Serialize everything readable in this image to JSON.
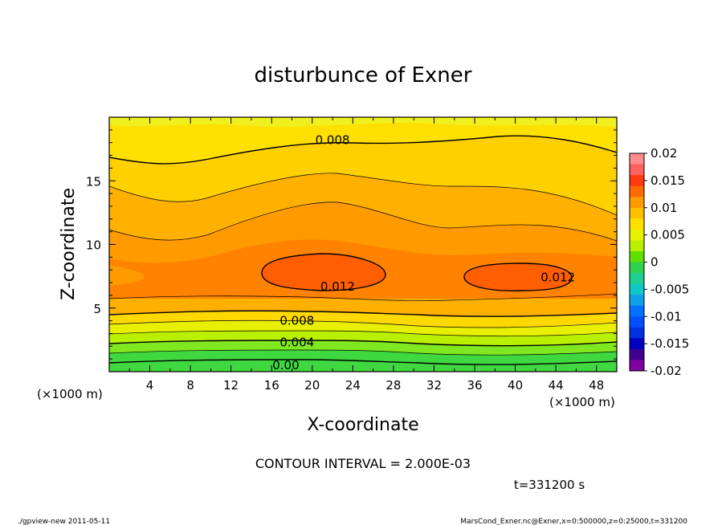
{
  "chart_data": {
    "type": "contour",
    "title": "disturbunce of Exner",
    "xlabel": "X-coordinate",
    "ylabel": "Z-coordinate",
    "x_unit_left": "(×1000 m)",
    "x_unit_right": "(×1000 m)",
    "xlim": [
      0,
      50
    ],
    "ylim": [
      0,
      20
    ],
    "x_ticks": [
      "4",
      "8",
      "12",
      "16",
      "20",
      "24",
      "28",
      "32",
      "36",
      "40",
      "44",
      "48"
    ],
    "y_ticks": [
      "5",
      "10",
      "15"
    ],
    "colorbar": {
      "labels": [
        "0.02",
        "0.015",
        "0.01",
        "0.005",
        "0",
        "-0.005",
        "-0.01",
        "-0.015",
        "-0.02"
      ],
      "colors": [
        "#ff8c8c",
        "#ff6060",
        "#ff3a10",
        "#ff6a00",
        "#ff9a00",
        "#ffc000",
        "#ffe000",
        "#e8f000",
        "#b8f000",
        "#60e000",
        "#30d050",
        "#20d090",
        "#10c8c8",
        "#10a0e8",
        "#0070ff",
        "#0050ff",
        "#0030e0",
        "#0000c0",
        "#400090",
        "#8000a0"
      ]
    },
    "contour_labels": [
      {
        "text": "0.008",
        "x": 22.0,
        "z": 18.2
      },
      {
        "text": "0.012",
        "x": 22.5,
        "z": 6.7
      },
      {
        "text": "0.012",
        "x": 44.2,
        "z": 7.4
      },
      {
        "text": "0.008",
        "x": 18.5,
        "z": 4.0
      },
      {
        "text": "0.004",
        "x": 18.5,
        "z": 2.3
      },
      {
        "text": "0.00",
        "x": 17.4,
        "z": 0.5
      }
    ],
    "contour_interval_text": "CONTOUR INTERVAL = 2.000E-03",
    "time_text": "t=331200 s"
  },
  "footer": {
    "left": "./gpview-new   2011-05-11",
    "right": "MarsCond_Exner.nc@Exner,x=0:500000,z=0:25000,t=331200"
  },
  "colors": {
    "yellow": "#ffe000",
    "gold": "#ffc000",
    "orange": "#ff9a00",
    "orange_dark": "#ff7400",
    "red_orange": "#ff5a00",
    "green": "#40d840"
  }
}
